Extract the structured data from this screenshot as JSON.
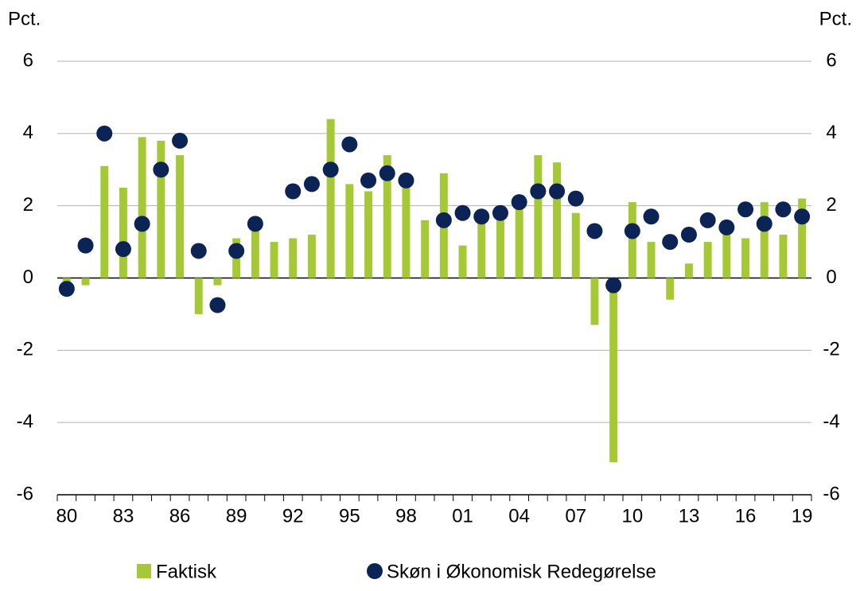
{
  "chart_data": {
    "type": "bar_dot",
    "y_label": "Pct.",
    "y2_label": "Pct.",
    "categories": [
      "80",
      null,
      null,
      "83",
      null,
      null,
      "86",
      null,
      null,
      "89",
      null,
      null,
      "92",
      null,
      null,
      "95",
      null,
      null,
      "98",
      null,
      null,
      "01",
      null,
      null,
      "04",
      null,
      null,
      "07",
      null,
      null,
      "10",
      null,
      null,
      "13",
      null,
      null,
      "16",
      null,
      null,
      "19"
    ],
    "series": [
      {
        "name": "Faktisk",
        "type": "bar",
        "color": "#a5c936",
        "values": [
          -0.1,
          -0.2,
          3.1,
          2.5,
          3.9,
          3.8,
          3.4,
          -1.0,
          -0.2,
          1.1,
          1.5,
          1.0,
          1.1,
          1.2,
          4.4,
          2.6,
          2.4,
          3.4,
          2.6,
          1.6,
          2.9,
          0.9,
          1.6,
          1.7,
          2.0,
          3.4,
          3.2,
          1.8,
          -1.3,
          -5.1,
          2.1,
          1.0,
          -0.6,
          0.4,
          1.0,
          1.3,
          1.1,
          2.1,
          1.2,
          2.2
        ]
      },
      {
        "name": "Skøn i Økonomisk Redegørelse",
        "type": "dot",
        "color": "#0c2356",
        "values": [
          -0.3,
          0.9,
          4.0,
          0.8,
          1.5,
          3.0,
          3.8,
          0.75,
          -0.75,
          0.75,
          1.5,
          null,
          2.4,
          2.6,
          3.0,
          3.7,
          2.7,
          2.9,
          2.7,
          null,
          1.6,
          1.8,
          1.7,
          1.8,
          2.1,
          2.4,
          2.4,
          2.2,
          1.3,
          -0.2,
          1.3,
          1.7,
          1.0,
          1.2,
          1.6,
          1.4,
          1.9,
          1.5,
          1.9,
          1.7
        ]
      }
    ],
    "ylim": [
      -6,
      6
    ],
    "yticks": [
      -6,
      -4,
      -2,
      0,
      2,
      4,
      6
    ],
    "y2lim": [
      -6,
      6
    ],
    "y2ticks": [
      -6,
      -4,
      -2,
      0,
      2,
      4,
      6
    ],
    "grid": true
  }
}
